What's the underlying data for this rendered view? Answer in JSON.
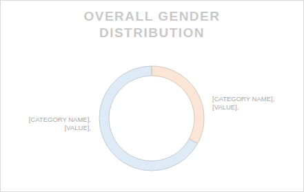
{
  "chart_data": {
    "type": "doughnut",
    "title": "OVERALL GENDER DISTRIBUTION",
    "categories": [
      "[CATEGORY NAME],",
      "[CATEGORY NAME],"
    ],
    "values": [
      33,
      67
    ],
    "value_labels": [
      "[VALUE],",
      "[VALUE],"
    ],
    "colors": [
      "#fbe5d6",
      "#deebf7"
    ],
    "data_labels": true
  }
}
